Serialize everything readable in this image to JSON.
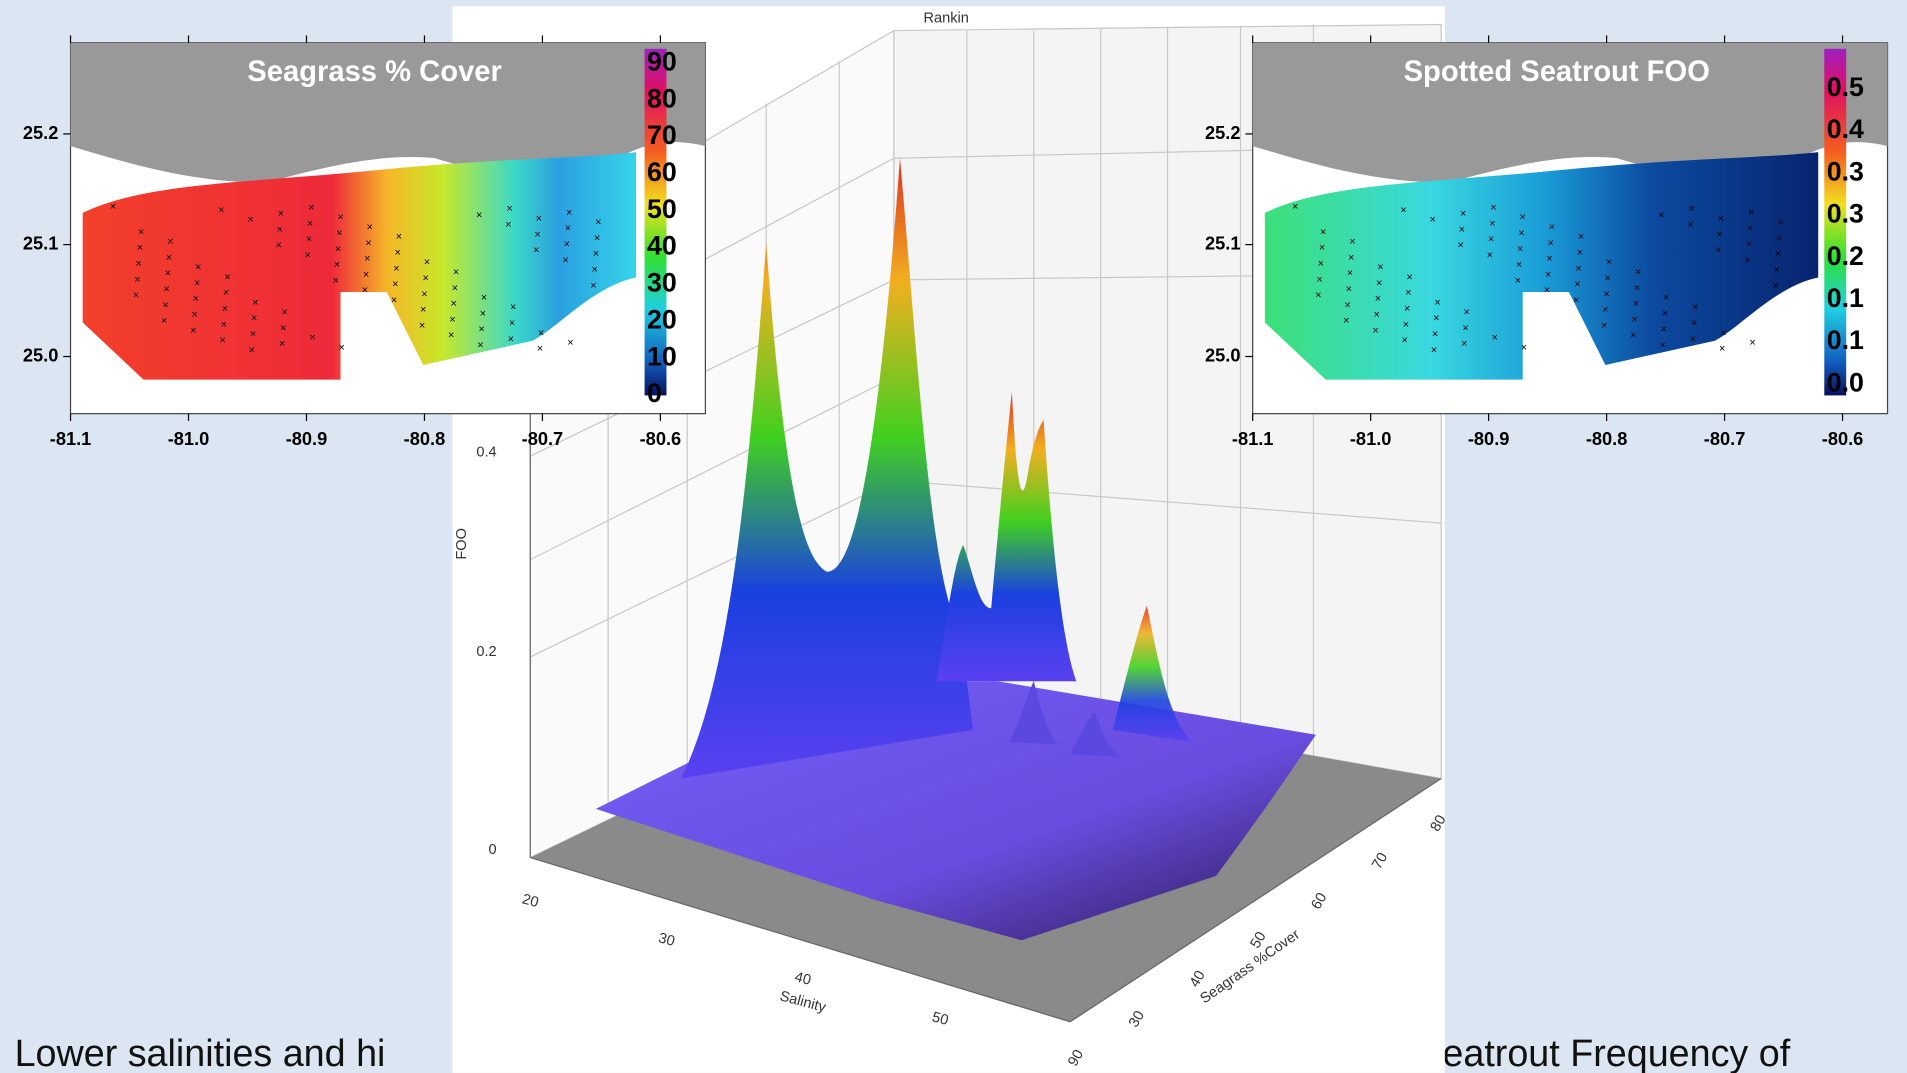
{
  "left_map": {
    "title": "Seagrass % Cover",
    "colorbar_labels": [
      "90",
      "80",
      "70",
      "60",
      "50",
      "40",
      "30",
      "20",
      "10",
      "0"
    ],
    "y_labels": [
      "25.2",
      "25.1",
      "25.0"
    ],
    "x_labels": [
      "-81.1",
      "-81.0",
      "-80.9",
      "-80.8",
      "-80.7",
      "-80.6"
    ]
  },
  "right_map": {
    "title": "Spotted Seatrout FOO",
    "colorbar_labels": [
      "0.5",
      "0.4",
      "0.3",
      "0.3",
      "0.2",
      "0.1",
      "0.1",
      "0.0"
    ],
    "y_labels": [
      "25.2",
      "25.1",
      "25.0"
    ],
    "x_labels": [
      "-81.1",
      "-81.0",
      "-80.9",
      "-80.8",
      "-80.7",
      "-80.6"
    ]
  },
  "surface_plot": {
    "title": "Rankin",
    "z_label": "FOO",
    "z_ticks": [
      "0.4",
      "0.2",
      "0"
    ],
    "x_label": "Salinity",
    "x_ticks": [
      "20",
      "30",
      "40",
      "50"
    ],
    "y_label": "Seagrass %Cover",
    "y_ticks": [
      "30",
      "40",
      "50",
      "60",
      "70",
      "80"
    ],
    "corner_label": "90"
  },
  "caption": {
    "left": "Lower salinities and hi",
    "right": "eatrout Frequency of"
  }
}
